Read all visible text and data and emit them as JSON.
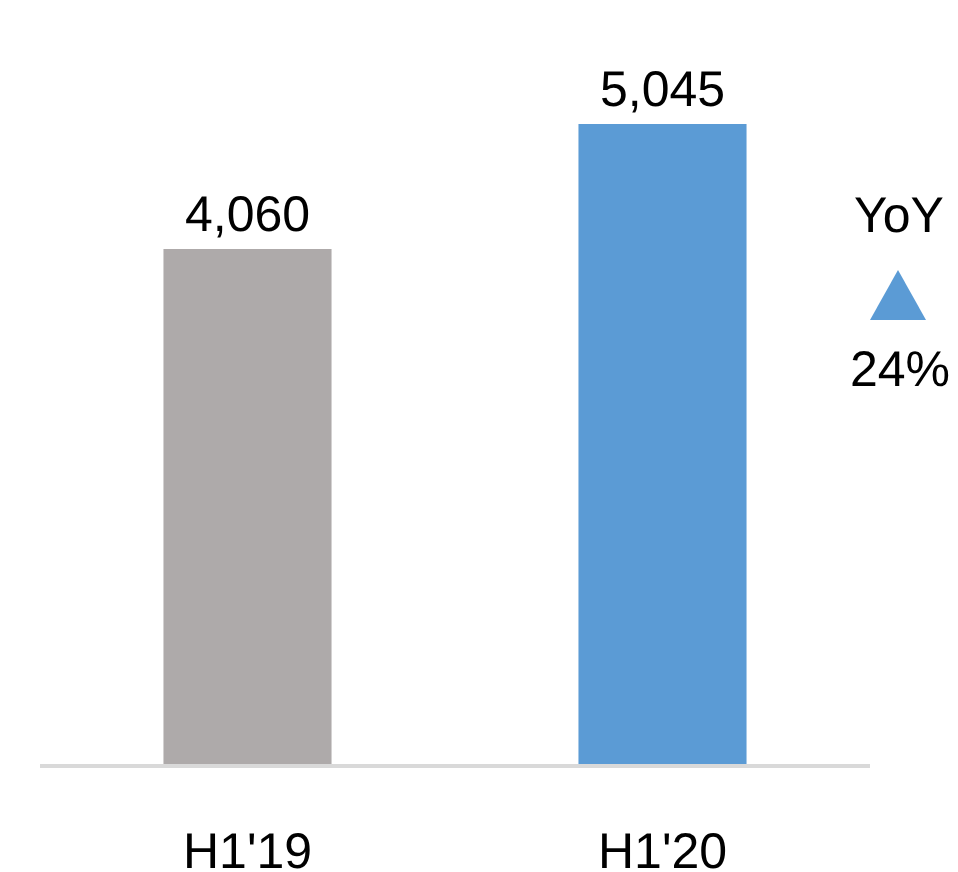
{
  "chart_data": {
    "type": "bar",
    "categories": [
      "H1'19",
      "H1'20"
    ],
    "values": [
      4060,
      5045
    ],
    "colors": [
      "#aeaaaa",
      "#5b9bd5"
    ],
    "value_labels": [
      "4,060",
      "5,045"
    ],
    "tick_labels": "x",
    "annotations": [
      "YoY",
      "24%"
    ]
  }
}
